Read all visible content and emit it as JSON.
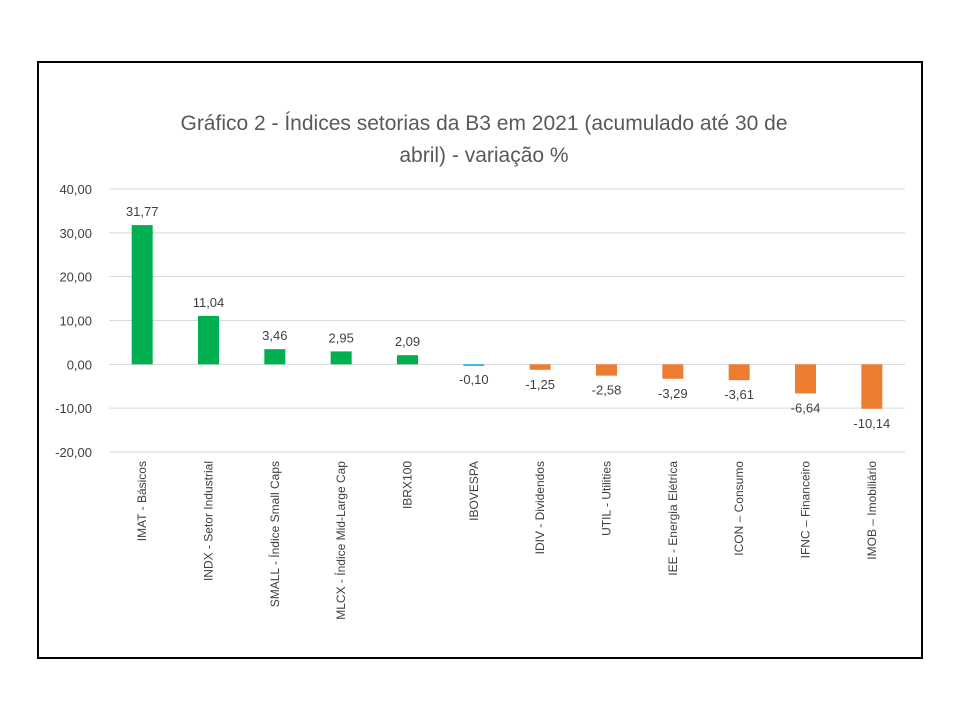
{
  "chart_data": {
    "type": "bar",
    "title_lines": [
      "Gráfico 2 - Índices setorias da B3 em 2021 (acumulado até 30 de",
      "abril) - variação %"
    ],
    "xlabel": "",
    "ylabel": "",
    "ylim": [
      -20,
      40
    ],
    "y_ticks": [
      "40,00",
      "30,00",
      "20,00",
      "10,00",
      "0,00",
      "-10,00",
      "-20,00"
    ],
    "grid": true,
    "legend": "none",
    "categories": [
      "IMAT - Básicos",
      "INDX - Setor Industrial",
      "SMALL - Índice Small Caps",
      "MLCX - Índice Mid-Large Cap",
      "IBRX100",
      "IBOVESPA",
      "IDIV - Dividendos",
      "UTIL - Utilities",
      "IEE - Energia Elétrica",
      "ICON – Consumo",
      "IFNC – Financeiro",
      "IMOB – Imobiliário"
    ],
    "values": [
      31.77,
      11.04,
      3.46,
      2.95,
      2.09,
      -0.1,
      -1.25,
      -2.58,
      -3.29,
      -3.61,
      -6.64,
      -10.14
    ],
    "value_labels": [
      "31,77",
      "11,04",
      "3,46",
      "2,95",
      "2,09",
      "-0,10",
      "-1,25",
      "-2,58",
      "-3,29",
      "-3,61",
      "-6,64",
      "-10,14"
    ],
    "bar_colors": [
      "#00B050",
      "#00B050",
      "#00B050",
      "#00B050",
      "#00B050",
      "#00B0F0",
      "#ED7D31",
      "#ED7D31",
      "#ED7D31",
      "#ED7D31",
      "#ED7D31",
      "#ED7D31"
    ]
  },
  "colors": {
    "positive": "#00B050",
    "neutral": "#00B0F0",
    "negative": "#ED7D31",
    "grid": "#D9D9D9",
    "text": "#404040",
    "title": "#595959"
  }
}
